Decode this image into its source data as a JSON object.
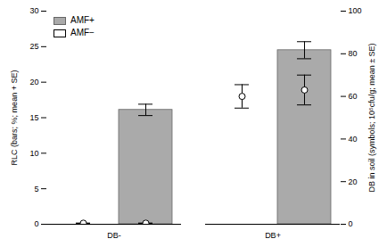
{
  "chart_data": {
    "type": "bar",
    "categories": [
      "DB-",
      "DB+"
    ],
    "series": [
      {
        "name": "AMF+",
        "type": "bar",
        "color": "#aaaaaa",
        "values": [
          16.1,
          24.5
        ],
        "errors": [
          0.8,
          1.2
        ]
      },
      {
        "name": "AMF−",
        "type": "scatter",
        "axis": "y2",
        "marker": "circle",
        "color": "white",
        "values": [
          0.5,
          60.0
        ],
        "errors": [
          0.0,
          5.5
        ]
      },
      {
        "name": "AMF+",
        "type": "scatter",
        "axis": "y2",
        "marker": "circle",
        "color": "white",
        "values": [
          0.5,
          63.0
        ],
        "errors": [
          0.0,
          7.0
        ]
      }
    ],
    "ylabel": "RLC (bars; %; mean + SE)",
    "y2label": "DB in soil (symbols; 10⁵cfu/g; mean ± SE)",
    "ylim": [
      0,
      30
    ],
    "yticks": [
      0,
      5,
      10,
      15,
      20,
      25,
      30
    ],
    "y2lim": [
      0,
      100
    ],
    "y2ticks": [
      0,
      20,
      40,
      60,
      80,
      100
    ],
    "legend": "upper left"
  }
}
